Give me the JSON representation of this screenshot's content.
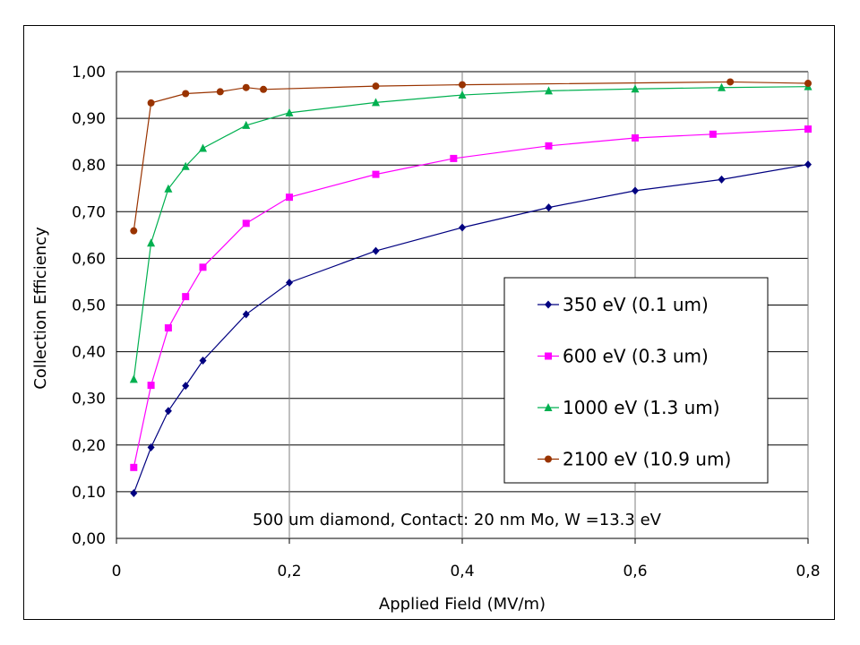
{
  "chart_data": {
    "type": "line",
    "title": "",
    "xlabel": "Applied Field (MV/m)",
    "ylabel": "Collection Efficiency",
    "xlim": [
      0,
      0.8
    ],
    "ylim": [
      0,
      1.0
    ],
    "x_ticks": [
      "0",
      "0,2",
      "0,4",
      "0,6",
      "0,8"
    ],
    "x_tick_values": [
      0,
      0.2,
      0.4,
      0.6,
      0.8
    ],
    "y_ticks": [
      "0,00",
      "0,10",
      "0,20",
      "0,30",
      "0,40",
      "0,50",
      "0,60",
      "0,70",
      "0,80",
      "0,90",
      "1,00"
    ],
    "y_tick_values": [
      0,
      0.1,
      0.2,
      0.3,
      0.4,
      0.5,
      0.6,
      0.7,
      0.8,
      0.9,
      1.0
    ],
    "grid": "both",
    "legend_position": "right",
    "annotation": "500 um diamond, Contact: 20 nm Mo,  W =13.3 eV",
    "series": [
      {
        "name": "350 eV (0.1 um)",
        "color": "#000080",
        "marker": "diamond",
        "x": [
          0.02,
          0.04,
          0.06,
          0.08,
          0.1,
          0.15,
          0.2,
          0.3,
          0.4,
          0.5,
          0.6,
          0.7,
          0.8
        ],
        "y": [
          0.097,
          0.195,
          0.273,
          0.327,
          0.381,
          0.48,
          0.548,
          0.616,
          0.666,
          0.709,
          0.745,
          0.769,
          0.801
        ]
      },
      {
        "name": "600 eV (0.3 um)",
        "color": "#FF00FF",
        "marker": "square",
        "x": [
          0.02,
          0.04,
          0.06,
          0.08,
          0.1,
          0.15,
          0.2,
          0.3,
          0.39,
          0.5,
          0.6,
          0.69,
          0.8
        ],
        "y": [
          0.152,
          0.328,
          0.451,
          0.518,
          0.581,
          0.675,
          0.731,
          0.78,
          0.814,
          0.841,
          0.858,
          0.866,
          0.877
        ]
      },
      {
        "name": "1000 eV (1.3 um)",
        "color": "#00B050",
        "marker": "triangle",
        "x": [
          0.02,
          0.04,
          0.06,
          0.08,
          0.1,
          0.15,
          0.2,
          0.3,
          0.4,
          0.5,
          0.6,
          0.7,
          0.8
        ],
        "y": [
          0.341,
          0.633,
          0.749,
          0.797,
          0.836,
          0.885,
          0.912,
          0.934,
          0.95,
          0.959,
          0.963,
          0.966,
          0.968
        ]
      },
      {
        "name": "2100 eV (10.9 um)",
        "color": "#993300",
        "marker": "circle",
        "x": [
          0.02,
          0.04,
          0.08,
          0.12,
          0.15,
          0.17,
          0.3,
          0.4,
          0.71,
          0.8
        ],
        "y": [
          0.659,
          0.933,
          0.953,
          0.957,
          0.966,
          0.962,
          0.969,
          0.972,
          0.978,
          0.975
        ]
      }
    ]
  }
}
